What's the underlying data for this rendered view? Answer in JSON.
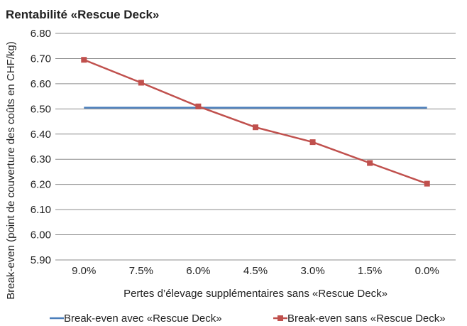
{
  "chart_data": {
    "type": "line",
    "title": "Rentabilité «Rescue Deck»",
    "xlabel": "Pertes d’élevage supplémentaires sans «Rescue Deck»",
    "ylabel": "Break-even (point de couverture des coûts en CHF/kg)",
    "categories": [
      "9.0%",
      "7.5%",
      "6.0%",
      "4.5%",
      "3.0%",
      "1.5%",
      "0.0%"
    ],
    "ylim": [
      5.9,
      6.8
    ],
    "yticks": [
      "6.80",
      "6.70",
      "6.60",
      "6.50",
      "6.40",
      "6.30",
      "6.20",
      "6.10",
      "6.00",
      "5.90"
    ],
    "grid": true,
    "legend_position": "bottom",
    "series": [
      {
        "name": "Break-even avec «Rescue Deck»",
        "color": "#4a7ebb",
        "marker": "none",
        "values": [
          6.505,
          6.505,
          6.505,
          6.505,
          6.505,
          6.505,
          6.505
        ]
      },
      {
        "name": "Break-even sans «Rescue Deck»",
        "color": "#c0504d",
        "marker": "square",
        "values": [
          6.695,
          6.604,
          6.51,
          6.427,
          6.368,
          6.285,
          6.203
        ]
      }
    ]
  }
}
